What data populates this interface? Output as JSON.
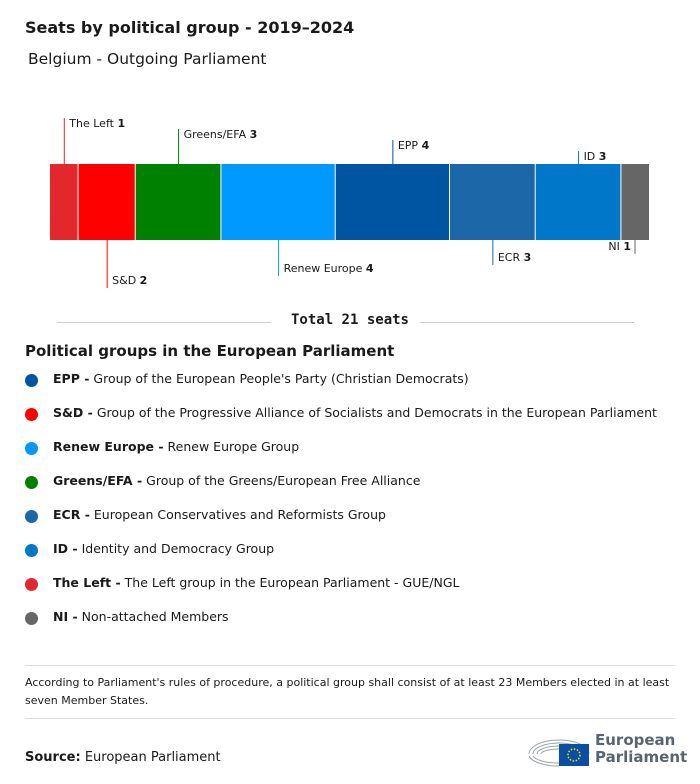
{
  "header": {
    "title": "Seats by political group - 2019–2024",
    "subtitle": "Belgium - Outgoing Parliament"
  },
  "chart_data": {
    "type": "bar",
    "orientation": "horizontal-stacked",
    "total_seats": 21,
    "categories": [
      "The Left",
      "S&D",
      "Greens/EFA",
      "Renew Europe",
      "EPP",
      "ECR",
      "ID",
      "NI"
    ],
    "values": [
      1,
      2,
      3,
      4,
      4,
      3,
      3,
      1
    ],
    "colors": [
      "#e3282d",
      "#ff0000",
      "#008000",
      "#0099ff",
      "#0055a2",
      "#1c67a8",
      "#0077c8",
      "#666666"
    ],
    "total_label": "Total 21 seats"
  },
  "legend": {
    "title": "Political groups in the European Parliament",
    "items": [
      {
        "abbr": "EPP -",
        "name": "Group of the European People's Party (Christian Democrats)",
        "color": "#0055a2"
      },
      {
        "abbr": "S&D -",
        "name": "Group of the Progressive Alliance of Socialists and Democrats in the European Parliament",
        "color": "#ff0000"
      },
      {
        "abbr": "Renew Europe -",
        "name": "Renew Europe Group",
        "color": "#0099ff"
      },
      {
        "abbr": "Greens/EFA -",
        "name": "Group of the Greens/European Free Alliance",
        "color": "#008000"
      },
      {
        "abbr": "ECR -",
        "name": "European Conservatives and Reformists Group",
        "color": "#1c67a8"
      },
      {
        "abbr": "ID -",
        "name": "Identity and Democracy Group",
        "color": "#0077c8"
      },
      {
        "abbr": "The Left -",
        "name": "The Left group in the European Parliament - GUE/NGL",
        "color": "#e3282d"
      },
      {
        "abbr": "NI -",
        "name": "Non-attached Members",
        "color": "#666666"
      }
    ]
  },
  "footer": {
    "note": "According to Parliament's rules of procedure, a political group shall consist of at least 23 Members elected in at least seven Member States.",
    "source_label": "Source:",
    "source": "European Parliament",
    "logo_text": "European Parliament"
  }
}
